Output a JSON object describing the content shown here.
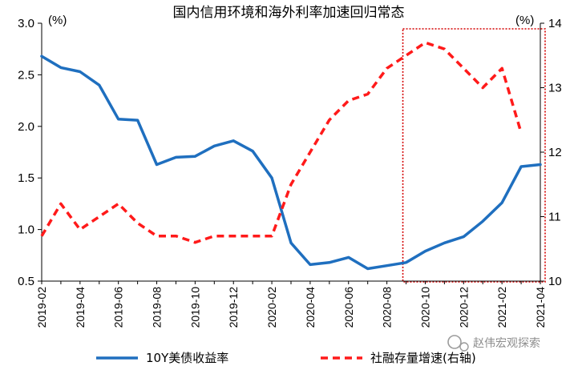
{
  "chart_data": {
    "type": "line",
    "title": "国内信用环境和海外利率加速回归常态",
    "x": [
      "2019-02",
      "2019-03",
      "2019-04",
      "2019-05",
      "2019-06",
      "2019-07",
      "2019-08",
      "2019-09",
      "2019-10",
      "2019-11",
      "2019-12",
      "2020-01",
      "2020-02",
      "2020-03",
      "2020-04",
      "2020-05",
      "2020-06",
      "2020-07",
      "2020-08",
      "2020-09",
      "2020-10",
      "2020-11",
      "2020-12",
      "2021-01",
      "2021-02",
      "2021-03",
      "2021-04"
    ],
    "xticks": [
      "2019-02",
      "2019-04",
      "2019-06",
      "2019-08",
      "2019-10",
      "2019-12",
      "2020-02",
      "2020-04",
      "2020-06",
      "2020-08",
      "2020-10",
      "2020-12",
      "2021-02",
      "2021-04"
    ],
    "left_axis": {
      "unit": "(%)",
      "ylim": [
        0.5,
        3.0
      ],
      "ticks": [
        "0.5",
        "1.0",
        "1.5",
        "2.0",
        "2.5",
        "3.0"
      ]
    },
    "right_axis": {
      "unit": "(%)",
      "ylim": [
        10,
        14
      ],
      "ticks": [
        "10",
        "11",
        "12",
        "13",
        "14"
      ]
    },
    "series": [
      {
        "name": "10Y美债收益率",
        "axis": "left",
        "color": "#1f6fbf",
        "style": "solid",
        "values": [
          2.68,
          2.57,
          2.53,
          2.4,
          2.07,
          2.06,
          1.63,
          1.7,
          1.71,
          1.81,
          1.86,
          1.76,
          1.5,
          0.87,
          0.66,
          0.68,
          0.73,
          0.62,
          0.65,
          0.68,
          0.79,
          0.87,
          0.93,
          1.08,
          1.26,
          1.61,
          1.63
        ]
      },
      {
        "name": "社融存量增速(右轴)",
        "axis": "right",
        "color": "#ff1a1a",
        "style": "dashed",
        "values": [
          10.7,
          11.2,
          10.8,
          11.0,
          11.2,
          10.9,
          10.7,
          10.7,
          10.6,
          10.7,
          10.7,
          10.7,
          10.7,
          11.5,
          12.0,
          12.5,
          12.8,
          12.9,
          13.3,
          13.5,
          13.7,
          13.6,
          13.3,
          13.0,
          13.3,
          12.3,
          null
        ]
      }
    ],
    "highlight": {
      "from": "2020-09",
      "to": "2021-04",
      "color": "#d40000",
      "style": "dotted"
    },
    "legend_position": "bottom",
    "watermark": "赵伟宏观探索"
  }
}
